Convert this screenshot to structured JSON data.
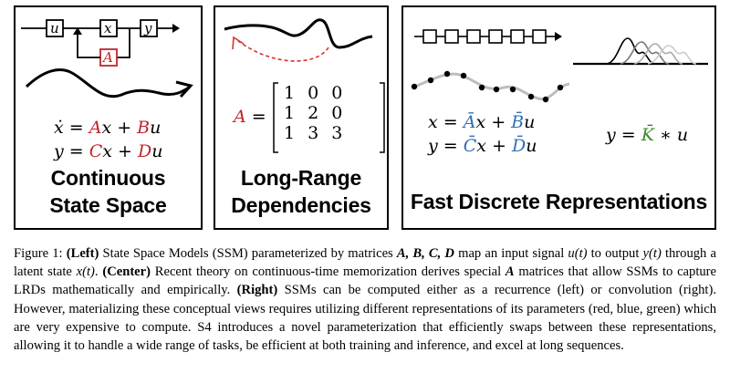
{
  "panels": {
    "left": {
      "diagram_labels": {
        "u": "u",
        "x": "x",
        "y": "y",
        "A": "A"
      },
      "equations": {
        "line1_lhs": "ẋ",
        "line1_eq": " = ",
        "line1_A": "A",
        "line1_x": "x + ",
        "line1_B": "B",
        "line1_u": "u",
        "line2_lhs": "y",
        "line2_eq": " = ",
        "line2_C": "C",
        "line2_x": "x + ",
        "line2_D": "D",
        "line2_u": "u"
      },
      "heading_line1": "Continuous",
      "heading_line2": "State Space"
    },
    "center": {
      "matrix_label": "A",
      "matrix_eq": " =",
      "matrix_rows": [
        [
          "1",
          "0",
          "0"
        ],
        [
          "1",
          "2",
          "0"
        ],
        [
          "1",
          "3",
          "3"
        ]
      ],
      "heading_line1": "Long-Range",
      "heading_line2": "Dependencies"
    },
    "right": {
      "eq1_lhs": "x = ",
      "eq1_A": "Ā",
      "eq1_x": "x + ",
      "eq1_B": "B̄",
      "eq1_u": "u",
      "eq2_lhs": "y = ",
      "eq2_C": "C̄",
      "eq2_x": "x + ",
      "eq2_D": "D̄",
      "eq2_u": "u",
      "conv_lhs": "y = ",
      "conv_K": "K̄",
      "conv_rest": " ∗ u",
      "heading": "Fast Discrete Representations"
    }
  },
  "colors": {
    "red": "#c0262c",
    "blue": "#2f6fb5",
    "green": "#3b8a2a"
  },
  "caption": {
    "label": "Figure 1: ",
    "left_tag": "(Left)",
    "seg1": " State Space Models (SSM) parameterized by matrices ",
    "mats": "A, B, C, D",
    "seg2": " map an input signal ",
    "ut": "u(t)",
    "seg3": " to output ",
    "yt": "y(t)",
    "seg4": " through a latent state ",
    "xt": "x(t)",
    "seg5": ". ",
    "center_tag": "(Center)",
    "seg6": " Recent theory on continuous-time memorization derives special ",
    "A": "A",
    "seg7": " matrices that allow SSMs to capture LRDs mathematically and empirically. ",
    "right_tag": "(Right)",
    "seg8": " SSMs can be computed either as a recurrence (left) or convolution (right). However, materializing these conceptual views requires utilizing different representations of its parameters (red, blue, green) which are very expensive to compute. S4 introduces a novel parameterization that efficiently swaps between these representations, allowing it to handle a wide range of tasks, be efficient at both training and inference, and excel at long sequences."
  }
}
